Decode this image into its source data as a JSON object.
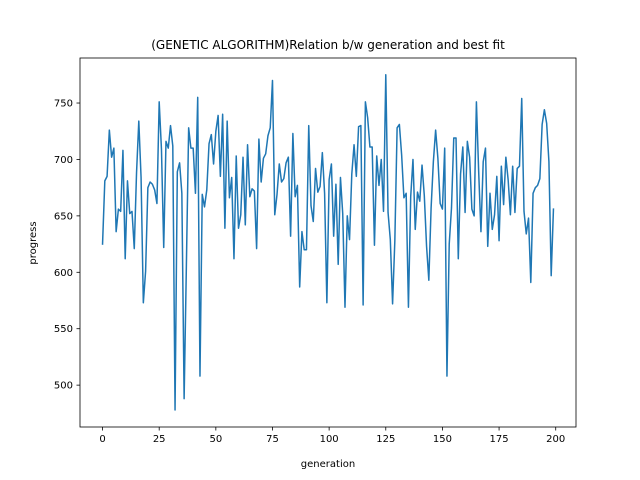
{
  "chart_data": {
    "type": "line",
    "title": "(GENETIC ALGORITHM)Relation b/w generation and best fit",
    "xlabel": "generation",
    "ylabel": "progress",
    "xlim": [
      -9.95,
      208.95
    ],
    "ylim": [
      462.9,
      789.9
    ],
    "xticks": [
      0,
      25,
      50,
      75,
      100,
      125,
      150,
      175,
      200
    ],
    "yticks": [
      500,
      550,
      600,
      650,
      700,
      750
    ],
    "grid": false,
    "series": [
      {
        "color": "#1f77b4",
        "x": [
          0,
          1,
          2,
          3,
          4,
          5,
          6,
          7,
          8,
          9,
          10,
          11,
          12,
          13,
          14,
          15,
          16,
          17,
          18,
          19,
          20,
          21,
          22,
          23,
          24,
          25,
          26,
          27,
          28,
          29,
          30,
          31,
          32,
          33,
          34,
          35,
          36,
          37,
          38,
          39,
          40,
          41,
          42,
          43,
          44,
          45,
          46,
          47,
          48,
          49,
          50,
          51,
          52,
          53,
          54,
          55,
          56,
          57,
          58,
          59,
          60,
          61,
          62,
          63,
          64,
          65,
          66,
          67,
          68,
          69,
          70,
          71,
          72,
          73,
          74,
          75,
          76,
          77,
          78,
          79,
          80,
          81,
          82,
          83,
          84,
          85,
          86,
          87,
          88,
          89,
          90,
          91,
          92,
          93,
          94,
          95,
          96,
          97,
          98,
          99,
          100,
          101,
          102,
          103,
          104,
          105,
          106,
          107,
          108,
          109,
          110,
          111,
          112,
          113,
          114,
          115,
          116,
          117,
          118,
          119,
          120,
          121,
          122,
          123,
          124,
          125,
          126,
          127,
          128,
          129,
          130,
          131,
          132,
          133,
          134,
          135,
          136,
          137,
          138,
          139,
          140,
          141,
          142,
          143,
          144,
          145,
          146,
          147,
          148,
          149,
          150,
          151,
          152,
          153,
          154,
          155,
          156,
          157,
          158,
          159,
          160,
          161,
          162,
          163,
          164,
          165,
          166,
          167,
          168,
          169,
          170,
          171,
          172,
          173,
          174,
          175,
          176,
          177,
          178,
          179,
          180,
          181,
          182,
          183,
          184,
          185,
          186,
          187,
          188,
          189,
          190,
          191,
          192,
          193,
          194,
          195,
          196,
          197,
          198,
          199
        ],
        "y": [
          625,
          681,
          685,
          726,
          702,
          710,
          636,
          656,
          654,
          708,
          612,
          681,
          652,
          654,
          621,
          688,
          734,
          684,
          573,
          601,
          675,
          680,
          678,
          673,
          661,
          751,
          709,
          622,
          716,
          710,
          730,
          712,
          478,
          689,
          697,
          670,
          488,
          606,
          728,
          710,
          710,
          670,
          755,
          508,
          669,
          658,
          673,
          714,
          722,
          696,
          725,
          739,
          685,
          740,
          639,
          734,
          666,
          684,
          612,
          703,
          639,
          651,
          702,
          642,
          713,
          667,
          674,
          672,
          621,
          718,
          680,
          701,
          705,
          721,
          728,
          770,
          651,
          669,
          696,
          680,
          683,
          697,
          702,
          632,
          723,
          667,
          677,
          587,
          636,
          620,
          620,
          730,
          659,
          645,
          692,
          671,
          676,
          706,
          670,
          573,
          682,
          696,
          632,
          678,
          607,
          684,
          652,
          569,
          650,
          629,
          687,
          713,
          685,
          729,
          730,
          571,
          751,
          737,
          711,
          711,
          624,
          703,
          677,
          700,
          654,
          775,
          653,
          629,
          572,
          628,
          728,
          731,
          704,
          666,
          670,
          569,
          667,
          700,
          638,
          671,
          663,
          695,
          668,
          623,
          593,
          657,
          698,
          726,
          701,
          661,
          656,
          710,
          508,
          625,
          657,
          719,
          719,
          612,
          687,
          711,
          653,
          716,
          702,
          656,
          650,
          751,
          689,
          636,
          698,
          710,
          623,
          670,
          638,
          651,
          685,
          628,
          694,
          660,
          702,
          682,
          651,
          694,
          653,
          692,
          694,
          754,
          654,
          634,
          648,
          591,
          670,
          675,
          677,
          683,
          731,
          744,
          732,
          698,
          597,
          656
        ]
      }
    ]
  }
}
